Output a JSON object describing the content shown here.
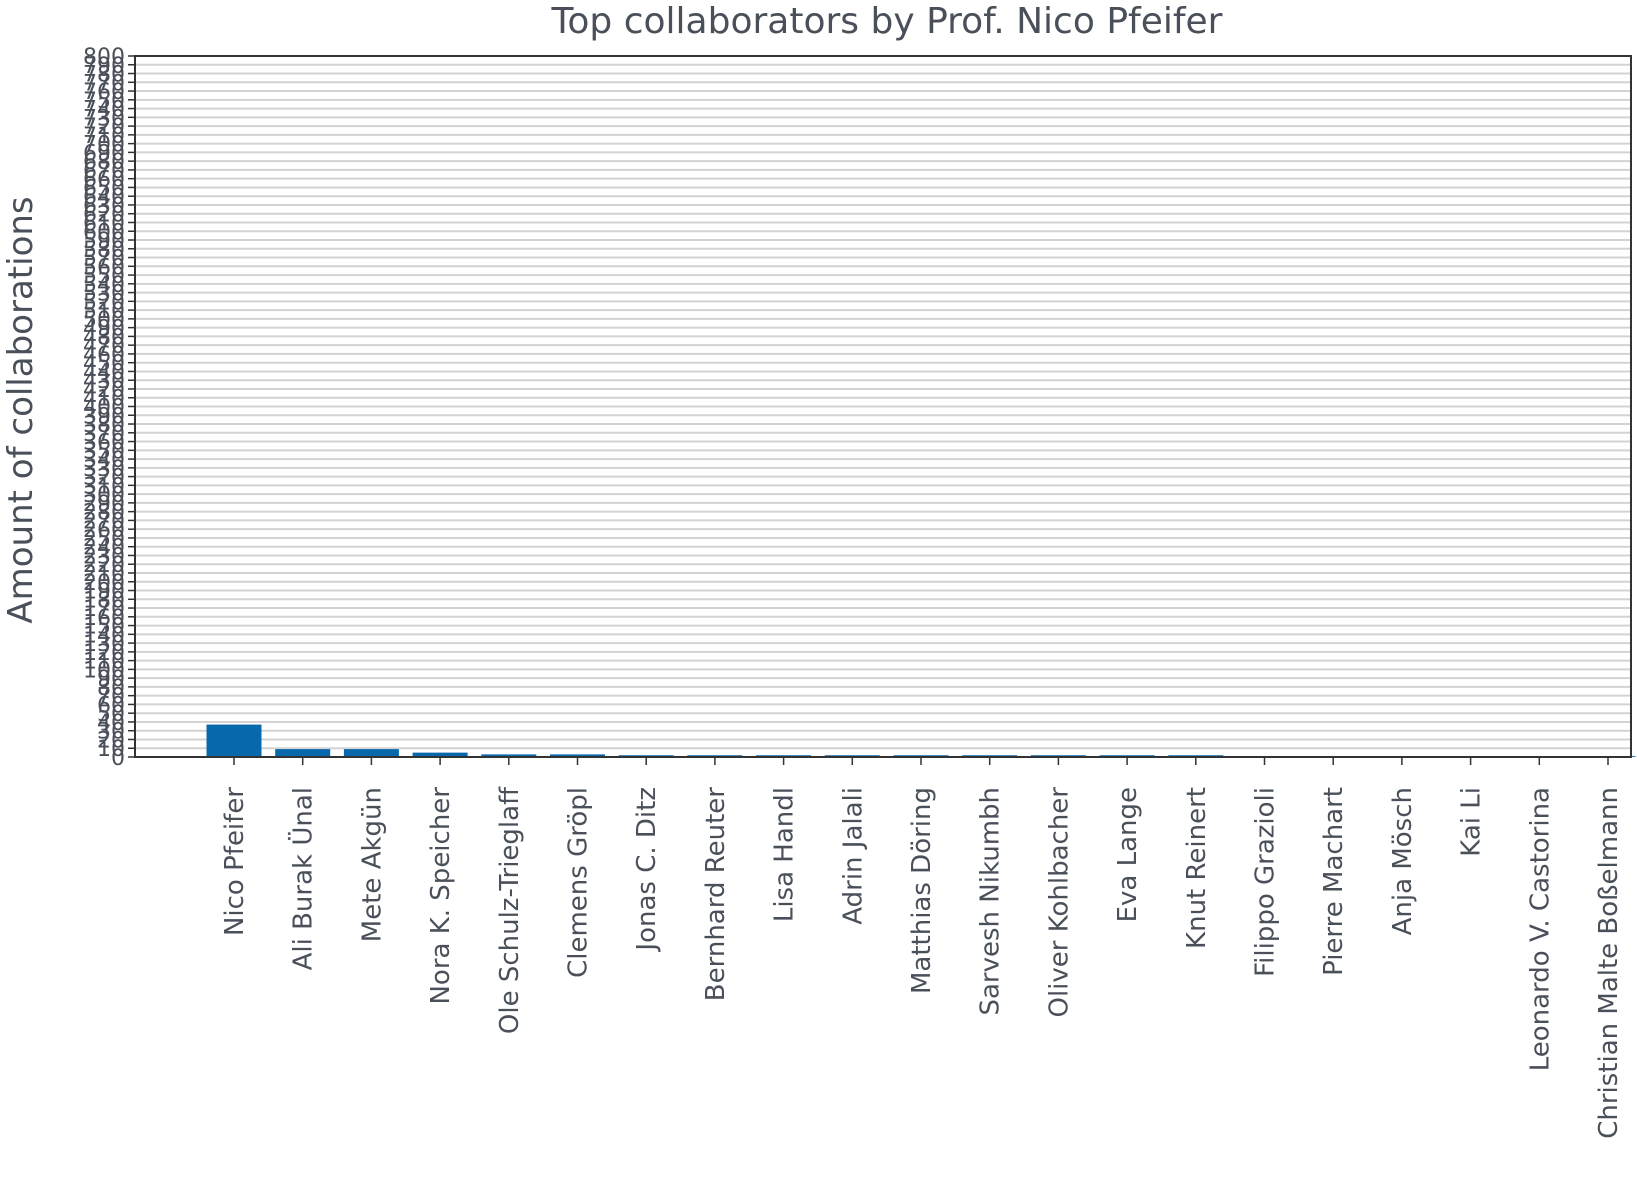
{
  "chart_data": {
    "type": "bar",
    "title": "Top collaborators by Prof. Nico Pfeifer",
    "xlabel": "",
    "ylabel": "Amount of collaborations",
    "ylim": [
      0,
      800
    ],
    "y_tick_step": 10,
    "grid": true,
    "bar_color": "#0868ac",
    "categories": [
      "Nico Pfeifer",
      "Ali Burak Ünal",
      "Mete Akgün",
      "Nora K. Speicher",
      "Ole Schulz-Trieglaff",
      "Clemens Gröpl",
      "Jonas C. Ditz",
      "Bernhard Reuter",
      "Lisa Handl",
      "Adrin Jalali",
      "Matthias Döring",
      "Sarvesh Nikumbh",
      "Oliver Kohlbacher",
      "Eva Lange",
      "Knut Reinert",
      "Filippo Grazioli",
      "Pierre Machart",
      "Anja Mösch",
      "Kai Li",
      "Leonardo V. Castorina",
      "Christian Malte Boßelmann"
    ],
    "values": [
      37,
      9,
      9,
      5,
      3,
      3,
      2,
      2,
      2,
      2,
      2,
      2,
      2,
      2,
      2,
      1,
      1,
      1,
      1,
      1,
      1
    ]
  }
}
